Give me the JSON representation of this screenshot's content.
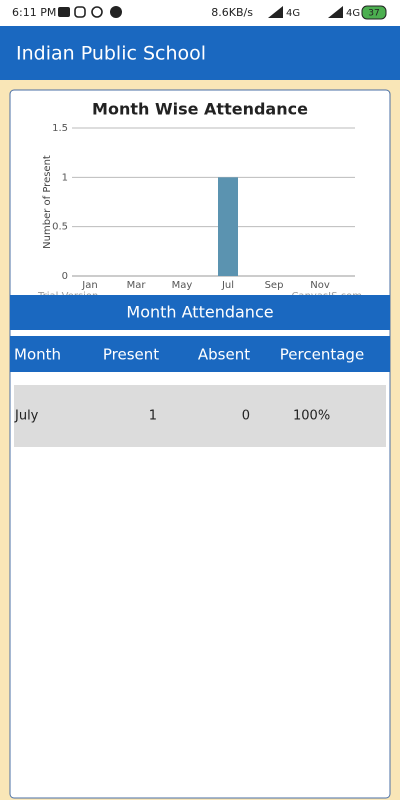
{
  "status_bar": {
    "time": "6:11 PM",
    "speed": "8.6KB/s",
    "network_1": "4G",
    "network_2": "4G",
    "battery": "37"
  },
  "app_bar": {
    "title": "Indian Public School"
  },
  "chart_data": {
    "type": "bar",
    "title": "Month Wise Attendance",
    "y_label": "Number of Present",
    "categories": [
      "Jan",
      null,
      "Mar",
      null,
      "May",
      null,
      "Jul",
      null,
      "Sep",
      null,
      "Nov",
      null
    ],
    "values": [
      null,
      null,
      null,
      null,
      null,
      null,
      1,
      null,
      null,
      null,
      null,
      null
    ],
    "color": "#5b93b0",
    "ylim": [
      0,
      1.5
    ],
    "yticks": [
      0,
      0.5,
      1,
      1.5
    ],
    "grid": true,
    "watermarks": [
      "Trial Version",
      "CanvasJS.com"
    ]
  },
  "table": {
    "title": "Month Attendance",
    "columns": [
      "Month",
      "Present",
      "Absent",
      "Percentage"
    ],
    "rows": [
      [
        "July",
        "1",
        "0",
        "100%"
      ]
    ]
  }
}
